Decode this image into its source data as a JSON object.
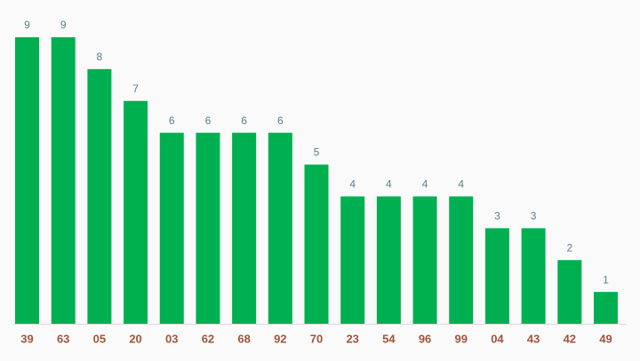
{
  "chart_data": {
    "type": "bar",
    "categories": [
      "39",
      "63",
      "05",
      "20",
      "03",
      "62",
      "68",
      "92",
      "70",
      "23",
      "54",
      "96",
      "99",
      "04",
      "43",
      "42",
      "49"
    ],
    "values": [
      9,
      9,
      8,
      7,
      6,
      6,
      6,
      6,
      5,
      4,
      4,
      4,
      4,
      3,
      3,
      2,
      1
    ],
    "color": "#00b050"
  }
}
